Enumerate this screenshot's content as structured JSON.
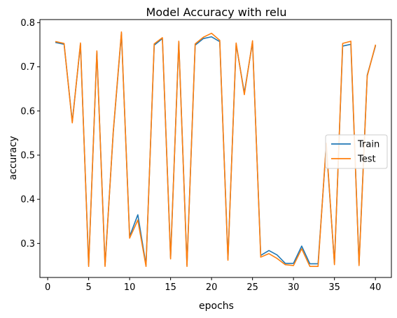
{
  "chart_data": {
    "type": "line",
    "title": "Model Accuracy with relu",
    "xlabel": "epochs",
    "ylabel": "accuracy",
    "xlim": [
      -0.95,
      41.95
    ],
    "ylim": [
      0.223,
      0.807
    ],
    "xticks": [
      0,
      5,
      10,
      15,
      20,
      25,
      30,
      35,
      40
    ],
    "yticks": [
      0.3,
      0.4,
      0.5,
      0.6,
      0.7,
      0.8
    ],
    "grid": false,
    "legend_position": "center-right",
    "x": [
      1,
      2,
      3,
      4,
      5,
      6,
      7,
      8,
      9,
      10,
      11,
      12,
      13,
      14,
      15,
      16,
      17,
      18,
      19,
      20,
      21,
      22,
      23,
      24,
      25,
      26,
      27,
      28,
      29,
      30,
      31,
      32,
      33,
      34,
      35,
      36,
      37,
      38,
      39,
      40
    ],
    "series": [
      {
        "name": "Train",
        "color": "#1f77b4",
        "values": [
          0.755,
          0.751,
          0.576,
          0.751,
          0.251,
          0.734,
          0.251,
          0.551,
          0.776,
          0.316,
          0.365,
          0.251,
          0.749,
          0.764,
          0.268,
          0.756,
          0.251,
          0.749,
          0.764,
          0.768,
          0.757,
          0.265,
          0.751,
          0.641,
          0.756,
          0.273,
          0.284,
          0.274,
          0.255,
          0.255,
          0.294,
          0.254,
          0.254,
          0.522,
          0.255,
          0.747,
          0.751,
          0.254,
          0.681,
          0.747
        ]
      },
      {
        "name": "Test",
        "color": "#ff7f0e",
        "values": [
          0.757,
          0.753,
          0.573,
          0.754,
          0.248,
          0.736,
          0.248,
          0.553,
          0.779,
          0.312,
          0.353,
          0.248,
          0.752,
          0.766,
          0.265,
          0.758,
          0.248,
          0.752,
          0.767,
          0.776,
          0.76,
          0.262,
          0.754,
          0.637,
          0.759,
          0.269,
          0.277,
          0.266,
          0.252,
          0.25,
          0.288,
          0.248,
          0.248,
          0.527,
          0.252,
          0.753,
          0.758,
          0.25,
          0.679,
          0.749
        ]
      }
    ]
  }
}
